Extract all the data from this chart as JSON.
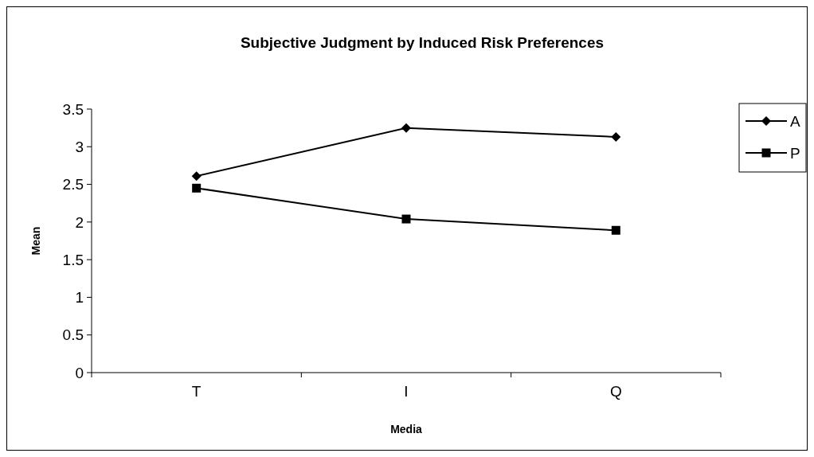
{
  "chart_data": {
    "type": "line",
    "title": "Subjective Judgment by Induced Risk Preferences",
    "xlabel": "Media",
    "ylabel": "Mean",
    "categories": [
      "T",
      "I",
      "Q"
    ],
    "series": [
      {
        "name": "A",
        "color": "#000000",
        "values": [
          2.61,
          3.25,
          3.13
        ],
        "marker": "diamond"
      },
      {
        "name": "P",
        "color": "#000000",
        "values": [
          2.45,
          2.04,
          1.89
        ],
        "marker": "square"
      }
    ],
    "ylim": [
      0,
      3.5
    ],
    "yticks": [
      0,
      0.5,
      1,
      1.5,
      2,
      2.5,
      3,
      3.5
    ],
    "grid": false,
    "legend": "right",
    "line_style": "solid"
  }
}
